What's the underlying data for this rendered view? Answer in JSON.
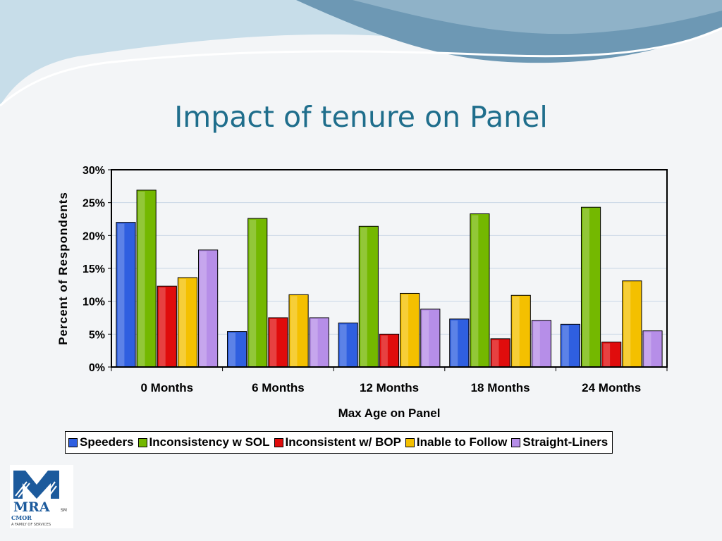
{
  "slide": {
    "title": "Impact of tenure on Panel",
    "logo": {
      "name": "MRA",
      "tagline_line1": "CMOR",
      "tagline_line2": "A FAMILY OF SERVICES"
    }
  },
  "chart_data": {
    "type": "bar",
    "title": "",
    "xlabel": "Max Age on Panel",
    "ylabel": "Percent of Respondents",
    "categories": [
      "0 Months",
      "6 Months",
      "12 Months",
      "18 Months",
      "24 Months"
    ],
    "ylim": [
      0,
      0.3
    ],
    "yticks": [
      "0%",
      "5%",
      "10%",
      "15%",
      "20%",
      "25%",
      "30%"
    ],
    "grid": true,
    "legend_position": "bottom",
    "series": [
      {
        "name": "Speeders",
        "color": "#2f5fe0",
        "values": [
          0.22,
          0.054,
          0.067,
          0.073,
          0.065
        ]
      },
      {
        "name": "Inconsistency w SOL",
        "color": "#74b800",
        "values": [
          0.269,
          0.226,
          0.214,
          0.233,
          0.243
        ]
      },
      {
        "name": "Inconsistent w/ BOP",
        "color": "#e00c0c",
        "values": [
          0.123,
          0.075,
          0.05,
          0.043,
          0.038
        ]
      },
      {
        "name": "Inable to Follow",
        "color": "#f4c000",
        "values": [
          0.136,
          0.11,
          0.112,
          0.109,
          0.131
        ]
      },
      {
        "name": "Straight-Liners",
        "color": "#b68ee8",
        "values": [
          0.178,
          0.075,
          0.088,
          0.071,
          0.055
        ]
      }
    ]
  }
}
